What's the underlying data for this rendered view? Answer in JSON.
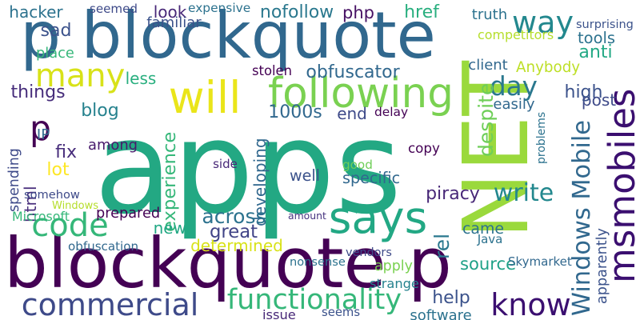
{
  "words": [
    {
      "text": "apps",
      "color": "#23a883",
      "rotated": false
    },
    {
      "text": "NET",
      "color": "#9ad93c",
      "rotated": true
    },
    {
      "text": "blockquote p",
      "color": "#440154",
      "rotated": false
    },
    {
      "text": "p blockquote",
      "color": "#31688e",
      "rotated": false
    },
    {
      "text": "msmobiles",
      "color": "#3b0f70",
      "rotated": true
    },
    {
      "text": "will",
      "color": "#eae51a",
      "rotated": false
    },
    {
      "text": "says",
      "color": "#22a884",
      "rotated": false
    },
    {
      "text": "commercial",
      "color": "#3e4a89",
      "rotated": false
    },
    {
      "text": "following",
      "color": "#7ad151",
      "rotated": false
    },
    {
      "text": "code",
      "color": "#35b779",
      "rotated": false
    },
    {
      "text": "way",
      "color": "#23888e",
      "rotated": false
    },
    {
      "text": "know",
      "color": "#3b0f70",
      "rotated": false
    },
    {
      "text": "many",
      "color": "#d8e219",
      "rotated": false
    },
    {
      "text": "p",
      "color": "#440154",
      "rotated": false
    },
    {
      "text": "day",
      "color": "#2a788e",
      "rotated": false
    },
    {
      "text": "functionality",
      "color": "#35b779",
      "rotated": false
    },
    {
      "text": "Windows Mobile",
      "color": "#31688e",
      "rotated": true
    },
    {
      "text": "write",
      "color": "#23888e",
      "rotated": false
    },
    {
      "text": "hacker",
      "color": "#2c728e",
      "rotated": false
    },
    {
      "text": "sad",
      "color": "#3b528b",
      "rotated": false
    },
    {
      "text": "look",
      "color": "#482878",
      "rotated": false
    },
    {
      "text": "nofollow",
      "color": "#2a788e",
      "rotated": false
    },
    {
      "text": "php",
      "color": "#471164",
      "rotated": false
    },
    {
      "text": "href",
      "color": "#29af7f",
      "rotated": false
    },
    {
      "text": "post",
      "color": "#3e4a89",
      "rotated": false
    },
    {
      "text": "tools",
      "color": "#2c728e",
      "rotated": false
    },
    {
      "text": "anti",
      "color": "#22a884",
      "rotated": false
    },
    {
      "text": "Anybody",
      "color": "#bddf26",
      "rotated": false
    },
    {
      "text": "obfuscator",
      "color": "#31688e",
      "rotated": false
    },
    {
      "text": "high",
      "color": "#3b528b",
      "rotated": false
    },
    {
      "text": "things",
      "color": "#472d7b",
      "rotated": false
    },
    {
      "text": "blog",
      "color": "#26828e",
      "rotated": false
    },
    {
      "text": "less",
      "color": "#29af7f",
      "rotated": false
    },
    {
      "text": "1000s",
      "color": "#31688e",
      "rotated": false
    },
    {
      "text": "end",
      "color": "#3e4a89",
      "rotated": false
    },
    {
      "text": "delay",
      "color": "#440154",
      "rotated": false
    },
    {
      "text": "among",
      "color": "#481a6c",
      "rotated": false
    },
    {
      "text": "fix",
      "color": "#472d7b",
      "rotated": false
    },
    {
      "text": "lot",
      "color": "#fde725",
      "rotated": false
    },
    {
      "text": "spending",
      "color": "#3e4a89",
      "rotated": true
    },
    {
      "text": "html",
      "color": "#472d7b",
      "rotated": true
    },
    {
      "text": "experience",
      "color": "#35b779",
      "rotated": true
    },
    {
      "text": "developing",
      "color": "#31688e",
      "rotated": true
    },
    {
      "text": "despite",
      "color": "#6ece58",
      "rotated": true
    },
    {
      "text": "piracy",
      "color": "#482878",
      "rotated": false
    },
    {
      "text": "across",
      "color": "#2c728e",
      "rotated": false
    },
    {
      "text": "great",
      "color": "#414487",
      "rotated": false
    },
    {
      "text": "news",
      "color": "#22a884",
      "rotated": false
    },
    {
      "text": "determined",
      "color": "#d8e219",
      "rotated": false
    },
    {
      "text": "came",
      "color": "#2c728e",
      "rotated": false
    },
    {
      "text": "source",
      "color": "#1fa187",
      "rotated": false
    },
    {
      "text": "rel",
      "color": "#2a788e",
      "rotated": true
    },
    {
      "text": "help",
      "color": "#3b528b",
      "rotated": false
    },
    {
      "text": "copy",
      "color": "#440154",
      "rotated": false
    },
    {
      "text": "specific",
      "color": "#31688e",
      "rotated": false
    },
    {
      "text": "well",
      "color": "#3b528b",
      "rotated": false
    },
    {
      "text": "good",
      "color": "#6ece58",
      "rotated": false
    },
    {
      "text": "side",
      "color": "#482878",
      "rotated": false
    },
    {
      "text": "somehow",
      "color": "#3e4a89",
      "rotated": false
    },
    {
      "text": "Windows",
      "color": "#b5de2b",
      "rotated": false
    },
    {
      "text": "prepared",
      "color": "#440154",
      "rotated": false
    },
    {
      "text": "Microsoft",
      "color": "#35b779",
      "rotated": false
    },
    {
      "text": "obfuscation",
      "color": "#31688e",
      "rotated": false
    },
    {
      "text": "amount",
      "color": "#46337f",
      "rotated": false
    },
    {
      "text": "nonsense",
      "color": "#2c728e",
      "rotated": false
    },
    {
      "text": "vendors",
      "color": "#3e4a89",
      "rotated": false
    },
    {
      "text": "apply",
      "color": "#7ad151",
      "rotated": false
    },
    {
      "text": "strange",
      "color": "#26828e",
      "rotated": false
    },
    {
      "text": "seems",
      "color": "#3b528b",
      "rotated": false
    },
    {
      "text": "issue",
      "color": "#482878",
      "rotated": false
    },
    {
      "text": "software",
      "color": "#2c728e",
      "rotated": false
    },
    {
      "text": "IP",
      "color": "#31688e",
      "rotated": false
    },
    {
      "text": "seemed",
      "color": "#3e4a89",
      "rotated": false
    },
    {
      "text": "expensive",
      "color": "#2c728e",
      "rotated": false
    },
    {
      "text": "familiar",
      "color": "#3b528b",
      "rotated": false
    },
    {
      "text": "place",
      "color": "#35b779",
      "rotated": false
    },
    {
      "text": "stolen",
      "color": "#440154",
      "rotated": false
    },
    {
      "text": "truth",
      "color": "#2c728e",
      "rotated": false
    },
    {
      "text": "surprising",
      "color": "#3b528b",
      "rotated": false
    },
    {
      "text": "competitors",
      "color": "#b5de2b",
      "rotated": false
    },
    {
      "text": "client",
      "color": "#31688e",
      "rotated": false
    },
    {
      "text": "easily",
      "color": "#31688e",
      "rotated": false
    },
    {
      "text": "problems",
      "color": "#2c728e",
      "rotated": true
    },
    {
      "text": "Java",
      "color": "#2c728e",
      "rotated": false
    },
    {
      "text": "Skymarket",
      "color": "#31688e",
      "rotated": false
    },
    {
      "text": "apparently",
      "color": "#3b528b",
      "rotated": true
    }
  ]
}
